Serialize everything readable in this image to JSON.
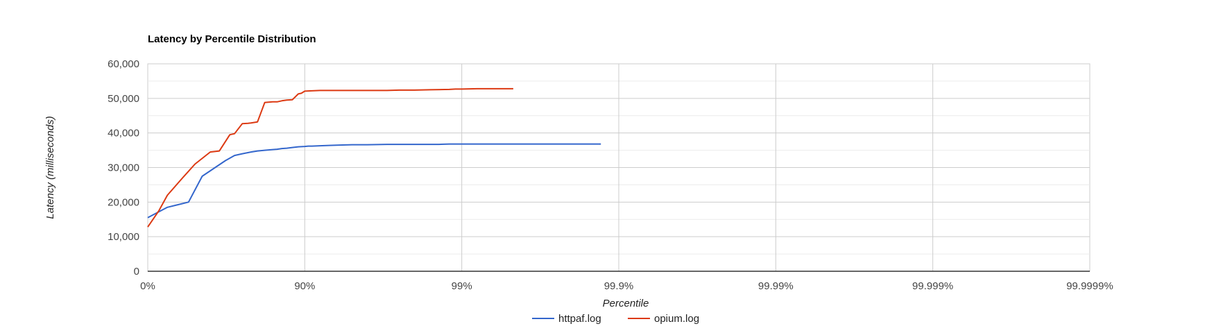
{
  "chart_data": {
    "type": "line",
    "title": "Latency by Percentile Distribution",
    "xlabel": "Percentile",
    "ylabel": "Latency (milliseconds)",
    "x_scale": "percentile-log-nines",
    "x_tick_labels": [
      "0%",
      "90%",
      "99%",
      "99.9%",
      "99.99%",
      "99.999%",
      "99.9999%"
    ],
    "y_ticks": [
      0,
      10000,
      20000,
      30000,
      40000,
      50000,
      60000
    ],
    "y_tick_labels": [
      "0",
      "10,000",
      "20,000",
      "30,000",
      "40,000",
      "50,000",
      "60,000"
    ],
    "ylim": [
      0,
      60000
    ],
    "grid": true,
    "legend_position": "bottom",
    "series": [
      {
        "name": "httpaf.log",
        "color": "#3366cc",
        "x": [
          0,
          25,
          45,
          55,
          68,
          72,
          75,
          78,
          80,
          82,
          84,
          85,
          86,
          87,
          88,
          89,
          90,
          90.5,
          91,
          92,
          93,
          94,
          95,
          96,
          97,
          98,
          98.6,
          98.8,
          99,
          99.2,
          99.4,
          99.6,
          99.7,
          99.8,
          99.84,
          99.87
        ],
        "values": [
          15500,
          18500,
          20000,
          27500,
          32000,
          33500,
          34000,
          34500,
          34800,
          35000,
          35200,
          35300,
          35500,
          35600,
          35800,
          36000,
          36100,
          36200,
          36200,
          36300,
          36400,
          36500,
          36600,
          36600,
          36700,
          36700,
          36700,
          36800,
          36800,
          36800,
          36800,
          36800,
          36800,
          36800,
          36800,
          36800
        ]
      },
      {
        "name": "opium.log",
        "color": "#dc3912",
        "x": [
          0,
          15,
          25,
          40,
          50,
          60,
          65,
          70,
          72,
          75,
          77,
          78,
          80,
          82,
          83,
          84,
          85,
          86,
          87,
          88,
          89,
          89.5,
          90,
          91,
          92,
          93,
          94,
          95,
          96,
          97,
          97.5,
          98,
          98.4,
          98.8,
          98.9,
          99,
          99.2,
          99.4,
          99.53
        ],
        "values": [
          12800,
          17500,
          22000,
          27000,
          31000,
          34500,
          34800,
          39500,
          39800,
          42700,
          42800,
          42900,
          43200,
          48800,
          48900,
          49000,
          49000,
          49300,
          49500,
          49600,
          51300,
          51500,
          52100,
          52200,
          52300,
          52300,
          52300,
          52300,
          52300,
          52300,
          52400,
          52400,
          52500,
          52600,
          52700,
          52700,
          52800,
          52800,
          52800
        ]
      }
    ]
  }
}
